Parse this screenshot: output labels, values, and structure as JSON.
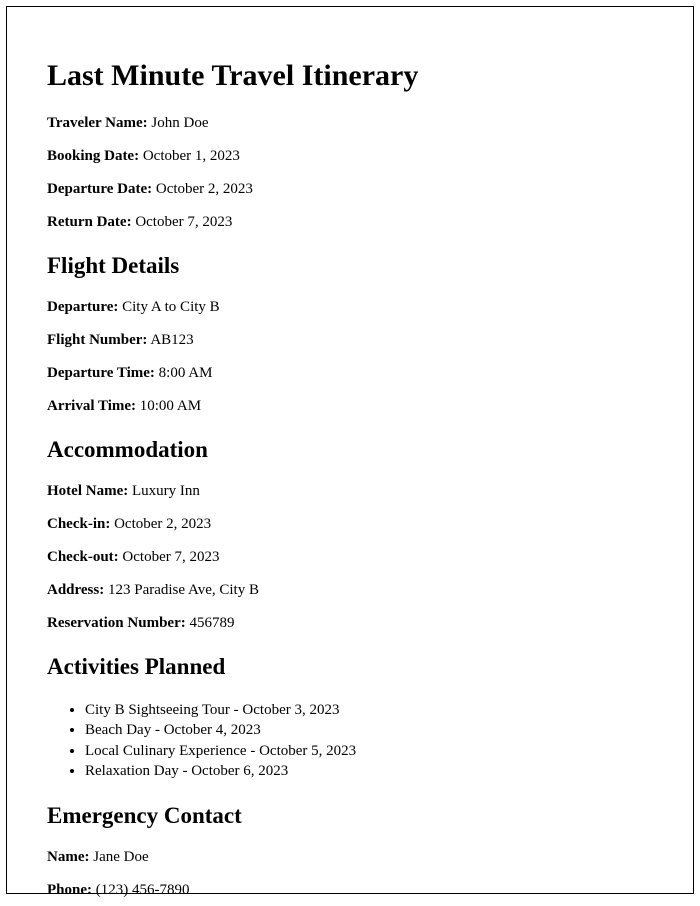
{
  "title": "Last Minute Travel Itinerary",
  "traveler": {
    "name_label": "Traveler Name:",
    "name_value": " John Doe",
    "booking_date_label": "Booking Date:",
    "booking_date_value": " October 1, 2023",
    "departure_date_label": "Departure Date:",
    "departure_date_value": " October 2, 2023",
    "return_date_label": "Return Date:",
    "return_date_value": " October 7, 2023"
  },
  "flight": {
    "heading": "Flight Details",
    "departure_label": "Departure:",
    "departure_value": " City A to City B",
    "flight_number_label": "Flight Number:",
    "flight_number_value": " AB123",
    "departure_time_label": "Departure Time:",
    "departure_time_value": " 8:00 AM",
    "arrival_time_label": "Arrival Time:",
    "arrival_time_value": " 10:00 AM"
  },
  "accommodation": {
    "heading": "Accommodation",
    "hotel_name_label": "Hotel Name:",
    "hotel_name_value": " Luxury Inn",
    "checkin_label": "Check-in:",
    "checkin_value": " October 2, 2023",
    "checkout_label": "Check-out:",
    "checkout_value": " October 7, 2023",
    "address_label": "Address:",
    "address_value": " 123 Paradise Ave, City B",
    "reservation_label": "Reservation Number:",
    "reservation_value": " 456789"
  },
  "activities": {
    "heading": "Activities Planned",
    "items": [
      "City B Sightseeing Tour - October 3, 2023",
      "Beach Day - October 4, 2023",
      "Local Culinary Experience - October 5, 2023",
      "Relaxation Day - October 6, 2023"
    ]
  },
  "emergency": {
    "heading": "Emergency Contact",
    "name_label": "Name:",
    "name_value": " Jane Doe",
    "phone_label": "Phone:",
    "phone_value": " (123) 456-7890"
  }
}
